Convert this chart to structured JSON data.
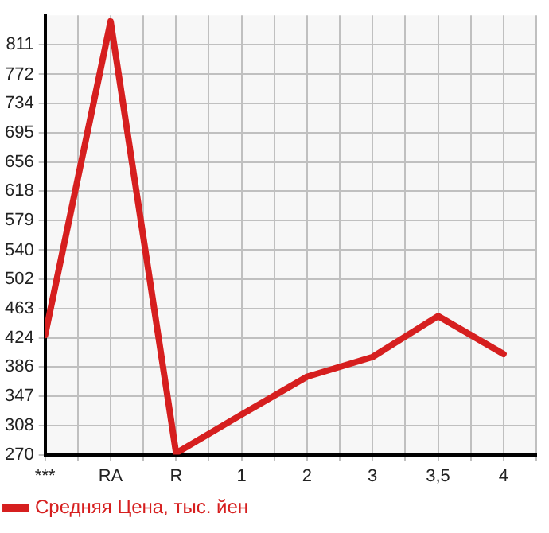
{
  "chart_data": {
    "type": "line",
    "categories": [
      "***",
      "RA",
      "R",
      "1",
      "2",
      "3",
      "3,5",
      "4"
    ],
    "series": [
      {
        "name": "Средняя Цена, тыс. йен",
        "color": "#d61f1f",
        "values": [
          428,
          842,
          272,
          323,
          373,
          399,
          453,
          403
        ]
      }
    ],
    "ylim": [
      270,
      850
    ],
    "yticks": [
      270,
      308,
      347,
      386,
      424,
      463,
      502,
      540,
      579,
      618,
      656,
      695,
      734,
      772,
      811
    ],
    "grid": true,
    "legend": "bottom left",
    "marker": "none",
    "line_style": "solid"
  }
}
